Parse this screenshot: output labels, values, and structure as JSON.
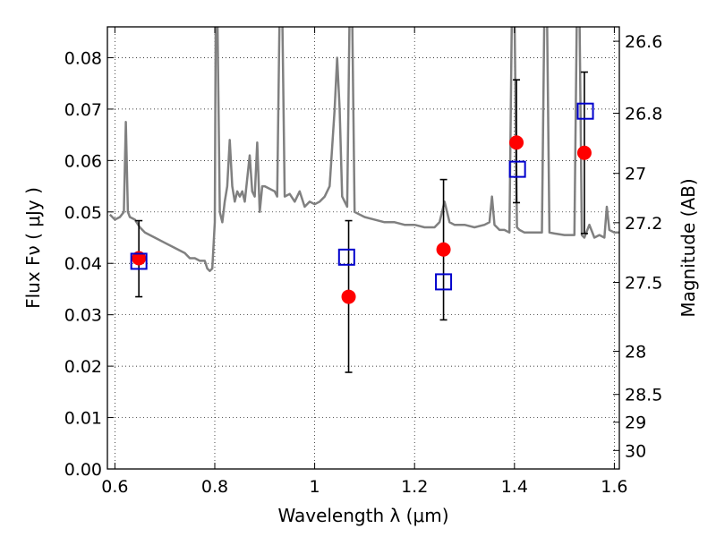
{
  "chart_data": {
    "type": "scatter",
    "xlabel": "Wavelength  λ (μm)",
    "ylabel": "Flux  Fν  ( μJy )",
    "y2label": "Magnitude (AB)",
    "xlim": [
      0.585,
      1.61
    ],
    "ylim": [
      0.0,
      0.086
    ],
    "x_ticks": [
      0.6,
      0.8,
      1.0,
      1.2,
      1.4,
      1.6
    ],
    "x_tick_labels": [
      "0.6",
      "0.8",
      "1",
      "1.2",
      "1.4",
      "1.6"
    ],
    "y_ticks": [
      0.0,
      0.01,
      0.02,
      0.03,
      0.04,
      0.05,
      0.06,
      0.07,
      0.08
    ],
    "y_tick_labels": [
      "0.00",
      "0.01",
      "0.02",
      "0.03",
      "0.04",
      "0.05",
      "0.06",
      "0.07",
      "0.08"
    ],
    "y2_ticks": [
      {
        "label": "26.6",
        "flux": 0.0832
      },
      {
        "label": "26.8",
        "flux": 0.0692
      },
      {
        "label": "27",
        "flux": 0.0575
      },
      {
        "label": "27.2",
        "flux": 0.0479
      },
      {
        "label": "27.5",
        "flux": 0.0363
      },
      {
        "label": "28",
        "flux": 0.0229
      },
      {
        "label": "28.5",
        "flux": 0.0145
      },
      {
        "label": "29",
        "flux": 0.0091
      },
      {
        "label": "30",
        "flux": 0.0036
      }
    ],
    "grid": true,
    "colors": {
      "observed": "#ff0000",
      "model": "#0000cc",
      "spectrum": "#808080",
      "errorbar": "#000000"
    },
    "series": [
      {
        "marker": "circle",
        "x": [
          0.648,
          1.068,
          1.258,
          1.404,
          1.54
        ],
        "y": [
          0.041,
          0.0335,
          0.0427,
          0.0635,
          0.0615
        ],
        "yerr_low": [
          0.0335,
          0.0188,
          0.029,
          0.0518,
          0.0458
        ],
        "yerr_high": [
          0.0483,
          0.0483,
          0.0563,
          0.0757,
          0.0772
        ]
      },
      {
        "marker": "open-square",
        "x": [
          0.648,
          1.064,
          1.258,
          1.406,
          1.542
        ],
        "y": [
          0.0404,
          0.0412,
          0.0364,
          0.0583,
          0.0696
        ]
      },
      {
        "style": "line",
        "x": [
          0.59,
          0.6,
          0.61,
          0.618,
          0.622,
          0.626,
          0.63,
          0.64,
          0.65,
          0.66,
          0.67,
          0.68,
          0.7,
          0.72,
          0.74,
          0.75,
          0.76,
          0.77,
          0.78,
          0.785,
          0.79,
          0.795,
          0.8,
          0.802,
          0.805,
          0.81,
          0.815,
          0.82,
          0.825,
          0.83,
          0.835,
          0.84,
          0.845,
          0.85,
          0.855,
          0.86,
          0.87,
          0.875,
          0.88,
          0.885,
          0.89,
          0.895,
          0.9,
          0.92,
          0.925,
          0.93,
          0.935,
          0.94,
          0.95,
          0.96,
          0.97,
          0.98,
          0.99,
          1.0,
          1.01,
          1.02,
          1.03,
          1.04,
          1.045,
          1.05,
          1.055,
          1.06,
          1.065,
          1.07,
          1.075,
          1.08,
          1.09,
          1.1,
          1.12,
          1.14,
          1.16,
          1.18,
          1.2,
          1.22,
          1.24,
          1.25,
          1.26,
          1.27,
          1.28,
          1.29,
          1.3,
          1.32,
          1.34,
          1.35,
          1.355,
          1.36,
          1.37,
          1.38,
          1.39,
          1.395,
          1.4,
          1.405,
          1.41,
          1.42,
          1.44,
          1.455,
          1.46,
          1.465,
          1.47,
          1.48,
          1.5,
          1.52,
          1.525,
          1.53,
          1.535,
          1.54,
          1.55,
          1.56,
          1.57,
          1.58,
          1.585,
          1.59,
          1.6,
          1.61
        ],
        "y": [
          0.0495,
          0.0485,
          0.049,
          0.05,
          0.0675,
          0.05,
          0.049,
          0.0485,
          0.047,
          0.046,
          0.0455,
          0.045,
          0.044,
          0.043,
          0.042,
          0.041,
          0.041,
          0.0405,
          0.0405,
          0.039,
          0.0385,
          0.039,
          0.048,
          0.09,
          0.09,
          0.05,
          0.048,
          0.052,
          0.055,
          0.064,
          0.055,
          0.052,
          0.054,
          0.053,
          0.054,
          0.052,
          0.061,
          0.054,
          0.053,
          0.0635,
          0.05,
          0.055,
          0.055,
          0.054,
          0.053,
          0.09,
          0.09,
          0.053,
          0.0535,
          0.052,
          0.054,
          0.051,
          0.052,
          0.0515,
          0.052,
          0.053,
          0.055,
          0.07,
          0.08,
          0.07,
          0.053,
          0.052,
          0.051,
          0.09,
          0.09,
          0.05,
          0.0495,
          0.049,
          0.0485,
          0.048,
          0.048,
          0.0475,
          0.0475,
          0.047,
          0.047,
          0.048,
          0.052,
          0.048,
          0.0475,
          0.0475,
          0.0475,
          0.047,
          0.0475,
          0.048,
          0.053,
          0.0475,
          0.0465,
          0.0465,
          0.046,
          0.09,
          0.09,
          0.047,
          0.0465,
          0.046,
          0.046,
          0.046,
          0.09,
          0.09,
          0.046,
          0.0458,
          0.0455,
          0.0455,
          0.09,
          0.09,
          0.0455,
          0.045,
          0.0475,
          0.045,
          0.0455,
          0.045,
          0.051,
          0.0465,
          0.046,
          0.046
        ]
      }
    ]
  }
}
